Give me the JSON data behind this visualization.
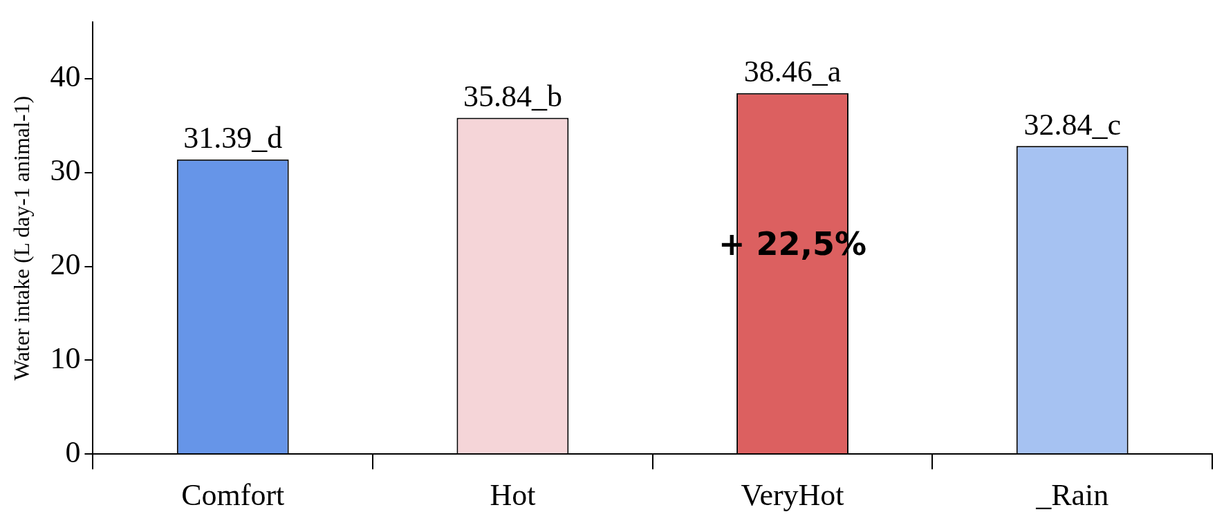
{
  "chart_data": {
    "type": "bar",
    "ylabel": "Water intake (L day-1 animal-1)",
    "categories": [
      "Comfort",
      "Hot",
      "VeryHot",
      "_Rain"
    ],
    "values": [
      31.39,
      35.84,
      38.46,
      32.84
    ],
    "value_labels": [
      "31.39_d",
      "35.84_b",
      "38.46_a",
      "32.84_c"
    ],
    "colors": [
      "#6695e8",
      "#f5d5d8",
      "#dc6060",
      "#a6c2f2"
    ],
    "ylim": [
      0,
      46
    ],
    "yticks": [
      0,
      10,
      20,
      30,
      40
    ],
    "grid": false,
    "legend": false,
    "annotations": [
      "+ 22,5%"
    ]
  }
}
